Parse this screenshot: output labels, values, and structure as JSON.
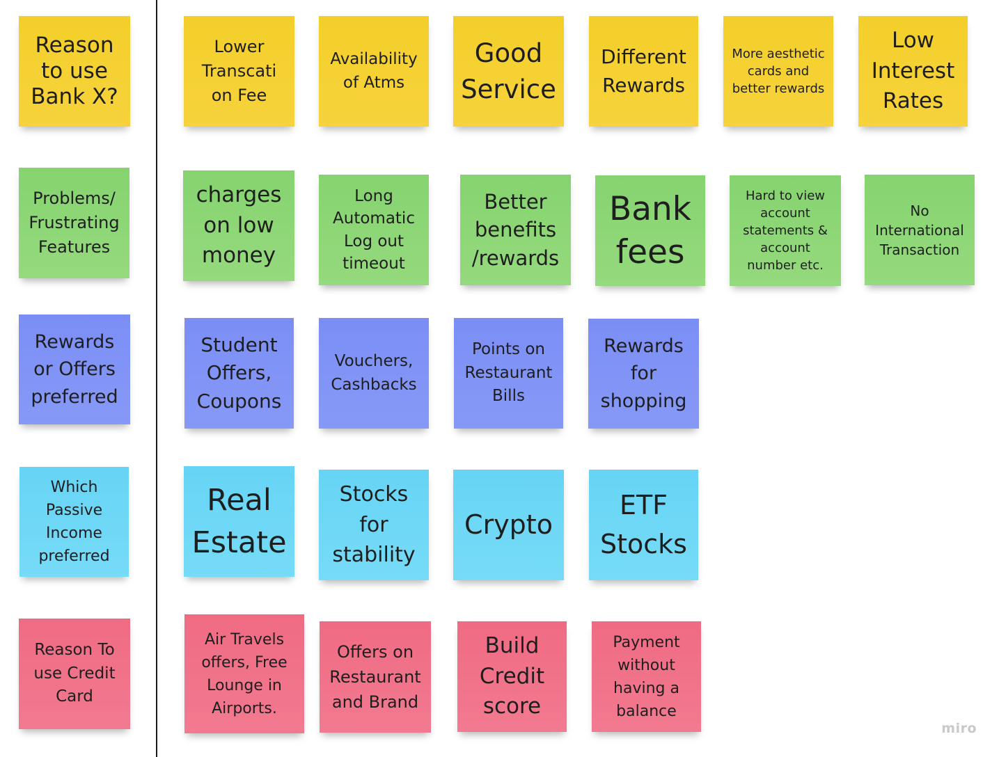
{
  "board": {
    "watermark": "miro"
  },
  "rows": [
    {
      "color": "yellow",
      "header": "Reason\nto use\nBank X?",
      "notes": [
        "Lower\nTranscati\non Fee",
        "Availability\nof  Atms",
        "Good\nService",
        "Different\nRewards",
        "More aesthetic\ncards and\nbetter rewards",
        "Low\nInterest\nRates"
      ]
    },
    {
      "color": "green",
      "header": "Problems/\nFrustrating\nFeatures",
      "notes": [
        "charges\non low\nmoney",
        "Long\nAutomatic\nLog out\ntimeout",
        "Better\nbenefits\n/rewards",
        "Bank\nfees",
        "Hard to view\naccount\nstatements &\naccount\nnumber etc.",
        "No\nInternational\nTransaction"
      ]
    },
    {
      "color": "blue",
      "header": "Rewards\nor Offers\npreferred",
      "notes": [
        "Student\nOffers,\nCoupons",
        "Vouchers,\nCashbacks",
        "Points on\nRestaurant\nBills",
        "Rewards\nfor\nshopping"
      ]
    },
    {
      "color": "cyan",
      "header": "Which\nPassive\nIncome\npreferred",
      "notes": [
        "Real\nEstate",
        "Stocks\nfor\nstability",
        "Crypto",
        "ETF\nStocks"
      ]
    },
    {
      "color": "red",
      "header": "Reason To\nuse Credit\nCard",
      "notes": [
        "Air Travels\noffers,  Free\nLounge in\nAirports.",
        "Offers on\nRestaurant\nand Brand",
        "Build\nCredit\nscore",
        "Payment\nwithout\nhaving a\nbalance"
      ]
    }
  ]
}
